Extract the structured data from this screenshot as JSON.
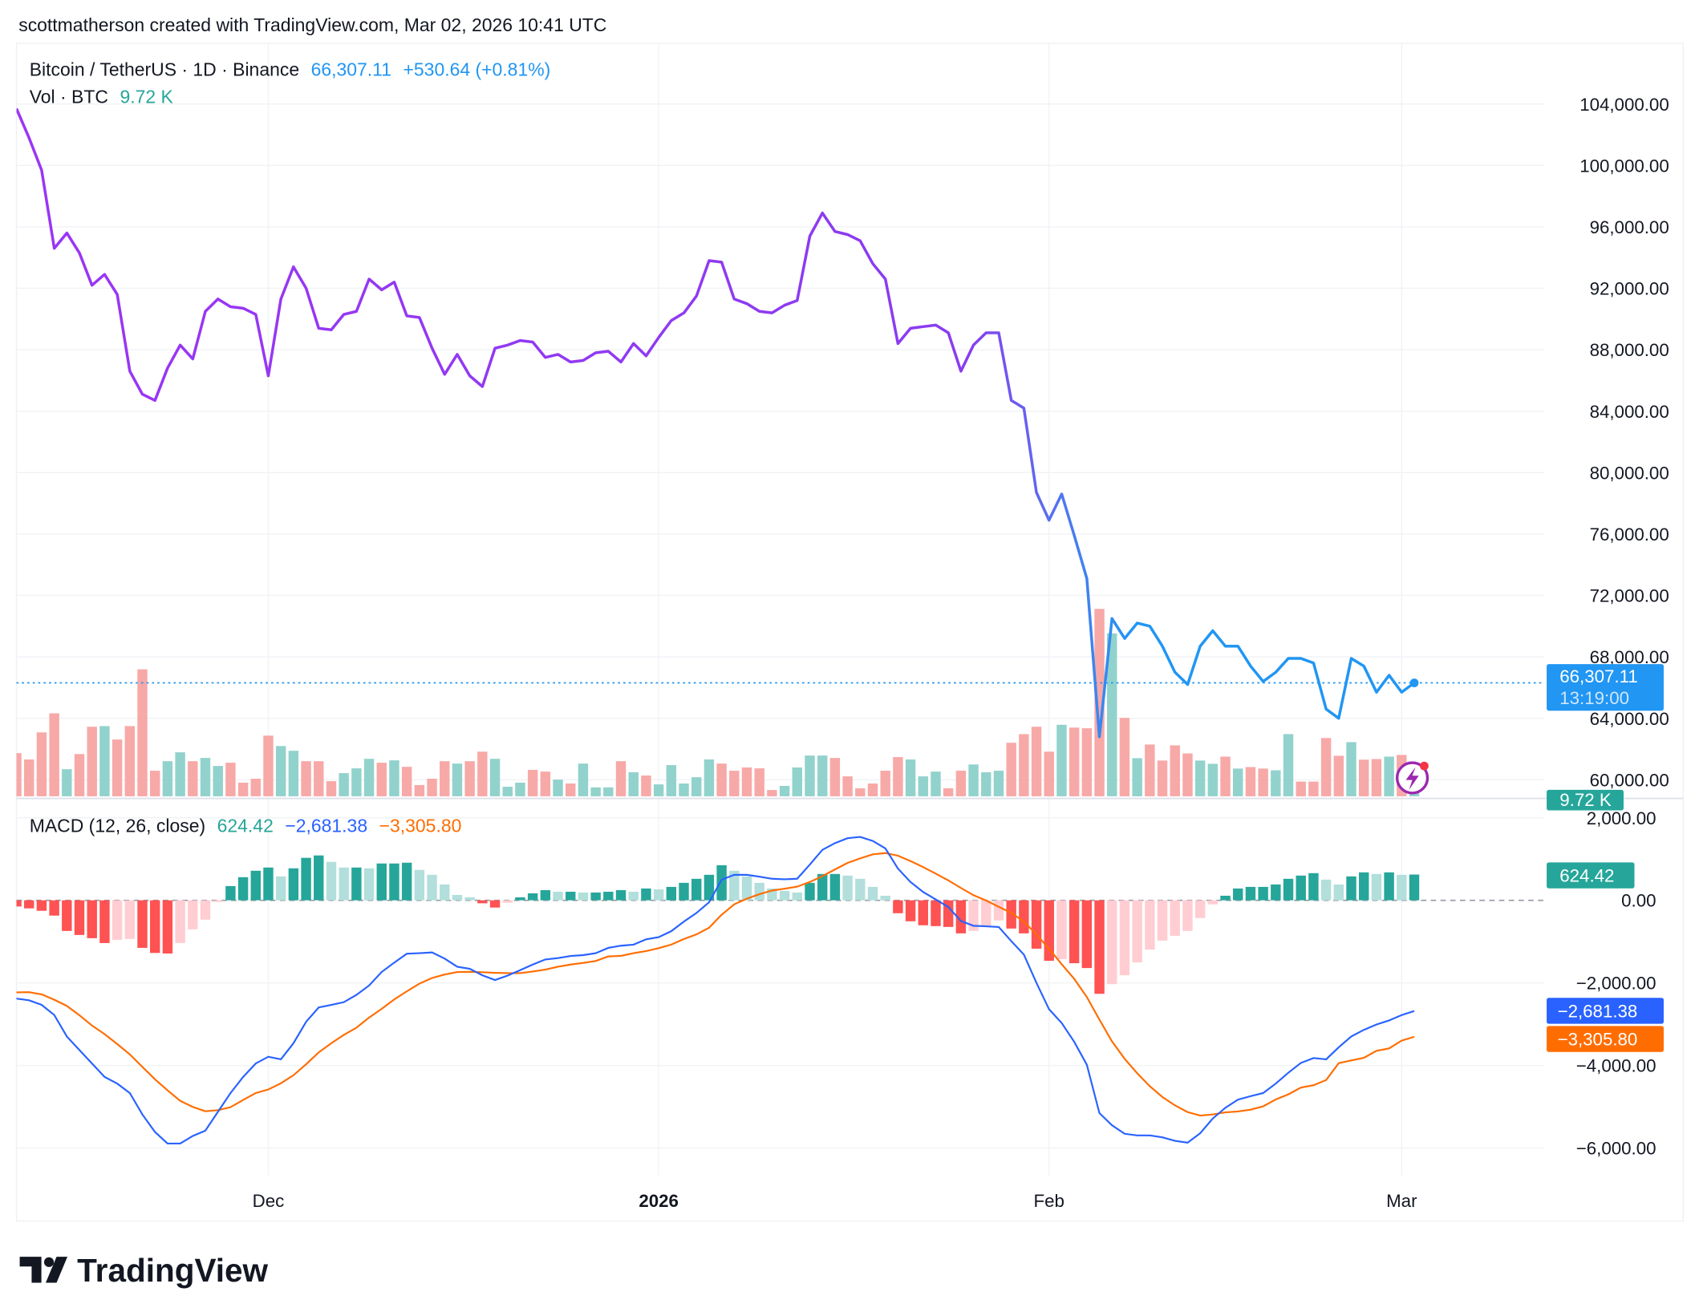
{
  "attribution": "scottmatherson created with TradingView.com, Mar 02, 2026 10:41 UTC",
  "legend": {
    "symbol": "Bitcoin / TetherUS · 1D · Binance",
    "last_price": "66,307.11",
    "change": "+530.64 (+0.81%)",
    "volume_label": "Vol · BTC",
    "volume_value": "9.72 K"
  },
  "macd_legend": {
    "label": "MACD (12, 26, close)",
    "histogram": "624.42",
    "macd": "−2,681.38",
    "signal": "−3,305.80"
  },
  "badges": {
    "price": "66,307.11",
    "countdown": "13:19:00",
    "volume": "9.72 K",
    "histogram": "624.42",
    "macd": "−2,681.38",
    "signal": "−3,305.80"
  },
  "logo": "TradingView",
  "colors": {
    "price_line_start": "#9b35f5",
    "price_line_end": "#2196f3",
    "up_volume": "#92d2cc",
    "down_volume": "#f7a9a7",
    "hist_up_strong": "#26a69a",
    "hist_up_weak": "#b2dfdb",
    "hist_down_strong": "#ff5252",
    "hist_down_weak": "#ffcdd2",
    "macd_line": "#2962ff",
    "signal_line": "#ff6d00",
    "text": "#131722"
  },
  "chart_data": [
    {
      "type": "line",
      "series_label": "Bitcoin / TetherUS · 1D · Binance",
      "x": [
        "2025-11-11",
        "2025-11-12",
        "2025-11-13",
        "2025-11-14",
        "2025-11-15",
        "2025-11-16",
        "2025-11-17",
        "2025-11-18",
        "2025-11-19",
        "2025-11-20",
        "2025-11-21",
        "2025-11-22",
        "2025-11-23",
        "2025-11-24",
        "2025-11-25",
        "2025-11-26",
        "2025-11-27",
        "2025-11-28",
        "2025-11-29",
        "2025-11-30",
        "2025-12-01",
        "2025-12-02",
        "2025-12-03",
        "2025-12-04",
        "2025-12-05",
        "2025-12-06",
        "2025-12-07",
        "2025-12-08",
        "2025-12-09",
        "2025-12-10",
        "2025-12-11",
        "2025-12-12",
        "2025-12-13",
        "2025-12-14",
        "2025-12-15",
        "2025-12-16",
        "2025-12-17",
        "2025-12-18",
        "2025-12-19",
        "2025-12-20",
        "2025-12-21",
        "2025-12-22",
        "2025-12-23",
        "2025-12-24",
        "2025-12-25",
        "2025-12-26",
        "2025-12-27",
        "2025-12-28",
        "2025-12-29",
        "2025-12-30",
        "2025-12-31",
        "2026-01-01",
        "2026-01-02",
        "2026-01-03",
        "2026-01-04",
        "2026-01-05",
        "2026-01-06",
        "2026-01-07",
        "2026-01-08",
        "2026-01-09",
        "2026-01-10",
        "2026-01-11",
        "2026-01-12",
        "2026-01-13",
        "2026-01-14",
        "2026-01-15",
        "2026-01-16",
        "2026-01-17",
        "2026-01-18",
        "2026-01-19",
        "2026-01-20",
        "2026-01-21",
        "2026-01-22",
        "2026-01-23",
        "2026-01-24",
        "2026-01-25",
        "2026-01-26",
        "2026-01-27",
        "2026-01-28",
        "2026-01-29",
        "2026-01-30",
        "2026-01-31",
        "2026-02-01",
        "2026-02-02",
        "2026-02-03",
        "2026-02-04",
        "2026-02-05",
        "2026-02-06",
        "2026-02-07",
        "2026-02-08",
        "2026-02-09",
        "2026-02-10",
        "2026-02-11",
        "2026-02-12",
        "2026-02-13",
        "2026-02-14",
        "2026-02-15",
        "2026-02-16",
        "2026-02-17",
        "2026-02-18",
        "2026-02-19",
        "2026-02-20",
        "2026-02-21",
        "2026-02-22",
        "2026-02-23",
        "2026-02-24",
        "2026-02-25",
        "2026-02-26",
        "2026-02-27",
        "2026-02-28",
        "2026-03-01",
        "2026-03-02"
      ],
      "close": [
        103700,
        101800,
        99700,
        94600,
        95600,
        94300,
        92200,
        92900,
        91600,
        86600,
        85100,
        84700,
        86800,
        88300,
        87400,
        90500,
        91300,
        90800,
        90700,
        90300,
        86300,
        91300,
        93400,
        92000,
        89400,
        89300,
        90300,
        90500,
        92600,
        91900,
        92400,
        90200,
        90100,
        88100,
        86400,
        87700,
        86300,
        85600,
        88100,
        88300,
        88600,
        88500,
        87500,
        87700,
        87200,
        87300,
        87800,
        87900,
        87200,
        88400,
        87600,
        88800,
        89900,
        90400,
        91500,
        93800,
        93700,
        91300,
        91000,
        90500,
        90400,
        90900,
        91200,
        95400,
        96900,
        95700,
        95500,
        95100,
        93600,
        92600,
        88400,
        89400,
        89500,
        89600,
        89100,
        86600,
        88300,
        89100,
        89100,
        84700,
        84200,
        78700,
        76900,
        78600,
        75900,
        73100,
        62800,
        70500,
        69200,
        70200,
        70000,
        68700,
        67000,
        66200,
        68700,
        69700,
        68700,
        68700,
        67400,
        66400,
        67000,
        67900,
        67900,
        67600,
        64600,
        64000,
        67900,
        67400,
        65700,
        66800,
        65700,
        66307.11
      ],
      "volume_k": [
        19.9,
        17.0,
        29.5,
        38.3,
        12.5,
        19.5,
        32.1,
        32.4,
        26.2,
        32.4,
        58.6,
        11.8,
        16.2,
        20.3,
        16.2,
        17.7,
        14.0,
        15.5,
        6.3,
        8.1,
        28.0,
        23.2,
        21.0,
        16.2,
        16.2,
        7.0,
        10.7,
        12.9,
        17.3,
        15.5,
        16.6,
        13.6,
        5.2,
        8.1,
        16.2,
        15.1,
        16.2,
        20.6,
        17.3,
        4.4,
        6.3,
        12.2,
        11.4,
        7.7,
        5.9,
        15.1,
        4.1,
        4.1,
        16.2,
        11.1,
        9.6,
        5.5,
        14.4,
        5.9,
        8.8,
        17.0,
        15.1,
        11.8,
        13.3,
        12.9,
        2.9,
        4.8,
        13.3,
        18.8,
        18.8,
        17.7,
        9.2,
        3.7,
        5.9,
        11.8,
        18.1,
        17.0,
        9.2,
        11.4,
        3.7,
        11.8,
        14.7,
        11.1,
        11.8,
        24.7,
        28.7,
        32.1,
        20.6,
        33.0,
        31.7,
        31.4,
        86.5,
        75.2,
        36.2,
        17.6,
        23.9,
        16.5,
        23.5,
        19.8,
        16.5,
        15.0,
        18.3,
        12.8,
        13.5,
        12.8,
        12.0,
        28.7,
        6.8,
        6.8,
        26.9,
        18.7,
        25.0,
        16.9,
        17.2,
        18.3,
        19.1,
        9.72
      ],
      "volume_direction": [
        "d",
        "d",
        "d",
        "d",
        "u",
        "d",
        "d",
        "u",
        "d",
        "d",
        "d",
        "d",
        "u",
        "u",
        "d",
        "u",
        "u",
        "d",
        "d",
        "d",
        "d",
        "u",
        "u",
        "d",
        "d",
        "d",
        "u",
        "u",
        "u",
        "d",
        "u",
        "d",
        "d",
        "d",
        "d",
        "u",
        "d",
        "d",
        "u",
        "u",
        "u",
        "d",
        "d",
        "u",
        "d",
        "u",
        "u",
        "u",
        "d",
        "u",
        "d",
        "u",
        "u",
        "u",
        "u",
        "u",
        "d",
        "d",
        "d",
        "d",
        "d",
        "u",
        "u",
        "u",
        "u",
        "d",
        "d",
        "d",
        "d",
        "d",
        "d",
        "u",
        "u",
        "u",
        "d",
        "d",
        "u",
        "u",
        "u",
        "d",
        "d",
        "d",
        "d",
        "u",
        "d",
        "d",
        "d",
        "u",
        "d",
        "u",
        "d",
        "d",
        "d",
        "d",
        "u",
        "u",
        "d",
        "u",
        "d",
        "d",
        "u",
        "u",
        "d",
        "d",
        "d",
        "d",
        "u",
        "d",
        "d",
        "u",
        "d",
        "u"
      ],
      "y_axis": {
        "range": [
          58800,
          105500
        ],
        "ticks": [
          {
            "value": 104000,
            "label": "104,000.00"
          },
          {
            "value": 100000,
            "label": "100,000.00"
          },
          {
            "value": 96000,
            "label": "96,000.00"
          },
          {
            "value": 92000,
            "label": "92,000.00"
          },
          {
            "value": 88000,
            "label": "88,000.00"
          },
          {
            "value": 84000,
            "label": "84,000.00"
          },
          {
            "value": 80000,
            "label": "80,000.00"
          },
          {
            "value": 76000,
            "label": "76,000.00"
          },
          {
            "value": 72000,
            "label": "72,000.00"
          },
          {
            "value": 68000,
            "label": "68,000.00"
          },
          {
            "value": 64000,
            "label": "64,000.00"
          },
          {
            "value": 60000,
            "label": "60,000.00"
          }
        ],
        "position": "right"
      },
      "x_ticks": [
        {
          "label": "Dec",
          "date": "2025-12-01",
          "bold": false
        },
        {
          "label": "2026",
          "date": "2026-01-01",
          "bold": true
        },
        {
          "label": "Feb",
          "date": "2026-02-01",
          "bold": false
        },
        {
          "label": "Mar",
          "date": "2026-03-01",
          "bold": false
        }
      ],
      "grid": true
    },
    {
      "type": "bar+line",
      "title": "MACD (12, 26, close)",
      "histogram": [
        -150,
        -195,
        -254,
        -371,
        -742,
        -840,
        -918,
        -1035,
        -957,
        -937,
        -1152,
        -1276,
        -1289,
        -1035,
        -703,
        -469,
        -39,
        345,
        560,
        716,
        794,
        579,
        775,
        1029,
        1087,
        931,
        794,
        794,
        775,
        892,
        892,
        911,
        736,
        618,
        384,
        130,
        72,
        -72,
        -176,
        -59,
        72,
        169,
        247,
        208,
        208,
        189,
        189,
        208,
        247,
        208,
        286,
        267,
        325,
        423,
        521,
        618,
        850,
        716,
        579,
        423,
        286,
        228,
        189,
        423,
        638,
        638,
        599,
        521,
        325,
        111,
        -313,
        -508,
        -605,
        -625,
        -645,
        -801,
        -742,
        -625,
        -488,
        -684,
        -801,
        -1172,
        -1465,
        -1426,
        -1524,
        -1641,
        -2265,
        -2031,
        -1816,
        -1504,
        -1192,
        -977,
        -859,
        -742,
        -430,
        -98,
        111,
        286,
        325,
        325,
        384,
        521,
        599,
        658,
        501,
        384,
        579,
        677,
        638,
        677,
        618,
        624.42
      ],
      "macd": [
        -2380,
        -2422,
        -2532,
        -2780,
        -3300,
        -3626,
        -3952,
        -4277,
        -4440,
        -4668,
        -5188,
        -5612,
        -5892,
        -5892,
        -5709,
        -5579,
        -5123,
        -4668,
        -4277,
        -3952,
        -3789,
        -3854,
        -3463,
        -2943,
        -2597,
        -2532,
        -2467,
        -2292,
        -2064,
        -1738,
        -1510,
        -1295,
        -1282,
        -1263,
        -1413,
        -1608,
        -1660,
        -1816,
        -1933,
        -1823,
        -1693,
        -1556,
        -1432,
        -1400,
        -1348,
        -1328,
        -1282,
        -1152,
        -1100,
        -1074,
        -944,
        -892,
        -749,
        -514,
        -306,
        -46,
        500,
        618,
        618,
        573,
        521,
        508,
        521,
        866,
        1224,
        1387,
        1504,
        1536,
        1439,
        1256,
        768,
        443,
        202,
        20,
        -163,
        -501,
        -618,
        -631,
        -645,
        -990,
        -1315,
        -1999,
        -2637,
        -2975,
        -3430,
        -3984,
        -5156,
        -5449,
        -5657,
        -5696,
        -5696,
        -5742,
        -5827,
        -5872,
        -5644,
        -5286,
        -5026,
        -4830,
        -4746,
        -4668,
        -4440,
        -4179,
        -3939,
        -3822,
        -3854,
        -3561,
        -3300,
        -3138,
        -3008,
        -2910,
        -2780,
        -2681.38
      ],
      "signal_rule": "macd - histogram",
      "y_axis": {
        "range": [
          -6900,
          2500
        ],
        "ticks": [
          {
            "value": 2000,
            "label": "2,000.00"
          },
          {
            "value": 0,
            "label": "0.00"
          },
          {
            "value": -2000,
            "label": "−2,000.00"
          },
          {
            "value": -4000,
            "label": "−4,000.00"
          },
          {
            "value": -6000,
            "label": "−6,000.00"
          }
        ],
        "position": "right"
      },
      "grid": true
    }
  ]
}
